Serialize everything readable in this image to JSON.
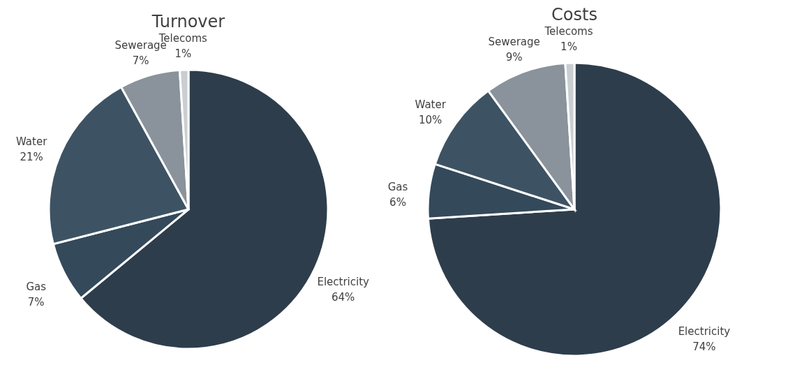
{
  "chart_data": [
    {
      "type": "pie",
      "title": "Turnover",
      "categories": [
        "Electricity",
        "Gas",
        "Water",
        "Sewerage",
        "Telecoms"
      ],
      "values": [
        64,
        7,
        21,
        7,
        1
      ],
      "value_labels": [
        "64%",
        "7%",
        "21%",
        "7%",
        "1%"
      ],
      "colors": [
        "#2e3d4b",
        "#34495a",
        "#3d5364",
        "#8a939b",
        "#c9ced2"
      ],
      "legend": false
    },
    {
      "type": "pie",
      "title": "Costs",
      "categories": [
        "Electricity",
        "Gas",
        "Water",
        "Sewerage",
        "Telecoms"
      ],
      "values": [
        74,
        6,
        10,
        9,
        1
      ],
      "value_labels": [
        "74%",
        "6%",
        "10%",
        "9%",
        "1%"
      ],
      "colors": [
        "#2e3d4b",
        "#34495a",
        "#3d5364",
        "#8a939b",
        "#c9ced2"
      ],
      "legend": false
    }
  ]
}
